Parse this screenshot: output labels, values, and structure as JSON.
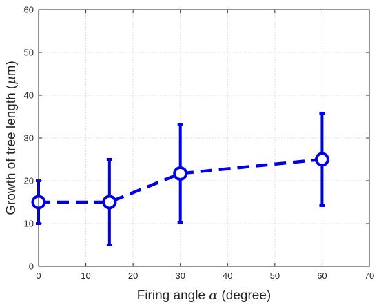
{
  "chart_data": {
    "type": "line",
    "title": "",
    "xlabel_prefix": "Firing angle ",
    "xlabel_symbol": "α",
    "xlabel_suffix": " (degree)",
    "ylabel_prefix": "Growth of tree length (",
    "ylabel_symbol": "μ",
    "ylabel_suffix": "m)",
    "xlim": [
      0,
      70
    ],
    "ylim": [
      0,
      60
    ],
    "xticks": [
      0,
      10,
      20,
      30,
      40,
      50,
      60,
      70
    ],
    "yticks": [
      0,
      10,
      20,
      30,
      40,
      50,
      60
    ],
    "xtick_labels": [
      "0",
      "10",
      "20",
      "30",
      "40",
      "50",
      "60",
      "70"
    ],
    "ytick_labels": [
      "0",
      "10",
      "20",
      "30",
      "40",
      "50",
      "60"
    ],
    "grid": true,
    "series": [
      {
        "x": [
          0,
          15,
          30,
          60
        ],
        "y": [
          15,
          15,
          21.7,
          25
        ],
        "err_low": [
          10,
          5,
          10.2,
          14.2
        ],
        "err_high": [
          20,
          25,
          33.2,
          35.8
        ],
        "color": "#0000e6",
        "line_style": "dashed",
        "marker": "circle"
      }
    ]
  }
}
